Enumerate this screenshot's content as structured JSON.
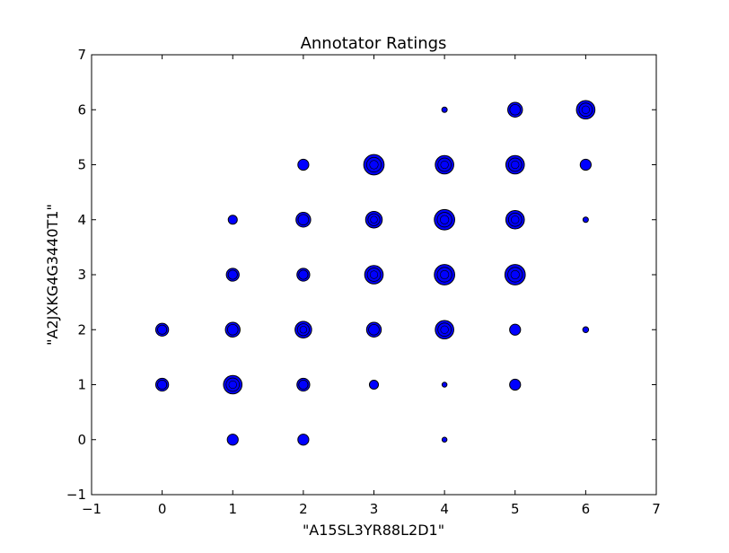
{
  "chart_data": {
    "type": "scatter",
    "title": "Annotator Ratings",
    "xlabel": "\"A15SL3YR88L2D1\"",
    "ylabel": "\"A2JXKG4G3440T1\"",
    "xlim": [
      -1,
      7
    ],
    "ylim": [
      -1,
      7
    ],
    "xticks": [
      -1,
      0,
      1,
      2,
      3,
      4,
      5,
      6,
      7
    ],
    "yticks": [
      -1,
      0,
      1,
      2,
      3,
      4,
      5,
      6,
      7
    ],
    "grid": false,
    "marker_color": "#0000ff",
    "edge_color": "#000000",
    "points": [
      {
        "x": 0,
        "y": 1,
        "count": 3
      },
      {
        "x": 0,
        "y": 2,
        "count": 3
      },
      {
        "x": 1,
        "y": 0,
        "count": 2
      },
      {
        "x": 1,
        "y": 1,
        "count": 6
      },
      {
        "x": 1,
        "y": 2,
        "count": 4
      },
      {
        "x": 1,
        "y": 3,
        "count": 3
      },
      {
        "x": 1,
        "y": 4,
        "count": 1
      },
      {
        "x": 2,
        "y": 0,
        "count": 2
      },
      {
        "x": 2,
        "y": 1,
        "count": 3
      },
      {
        "x": 2,
        "y": 2,
        "count": 5
      },
      {
        "x": 2,
        "y": 3,
        "count": 3
      },
      {
        "x": 2,
        "y": 4,
        "count": 4
      },
      {
        "x": 2,
        "y": 5,
        "count": 2
      },
      {
        "x": 3,
        "y": 1,
        "count": 1
      },
      {
        "x": 3,
        "y": 2,
        "count": 4
      },
      {
        "x": 3,
        "y": 3,
        "count": 6
      },
      {
        "x": 3,
        "y": 4,
        "count": 5
      },
      {
        "x": 3,
        "y": 5,
        "count": 7
      },
      {
        "x": 4,
        "y": 0,
        "count": 0.3
      },
      {
        "x": 4,
        "y": 1,
        "count": 0.3
      },
      {
        "x": 4,
        "y": 2,
        "count": 6
      },
      {
        "x": 4,
        "y": 3,
        "count": 7
      },
      {
        "x": 4,
        "y": 4,
        "count": 7
      },
      {
        "x": 4,
        "y": 5,
        "count": 6
      },
      {
        "x": 4,
        "y": 6,
        "count": 0.4
      },
      {
        "x": 5,
        "y": 1,
        "count": 2
      },
      {
        "x": 5,
        "y": 2,
        "count": 2
      },
      {
        "x": 5,
        "y": 3,
        "count": 7
      },
      {
        "x": 5,
        "y": 4,
        "count": 6
      },
      {
        "x": 5,
        "y": 5,
        "count": 6
      },
      {
        "x": 5,
        "y": 6,
        "count": 4
      },
      {
        "x": 6,
        "y": 2,
        "count": 0.5
      },
      {
        "x": 6,
        "y": 4,
        "count": 0.4
      },
      {
        "x": 6,
        "y": 5,
        "count": 2
      },
      {
        "x": 6,
        "y": 6,
        "count": 6
      }
    ]
  }
}
